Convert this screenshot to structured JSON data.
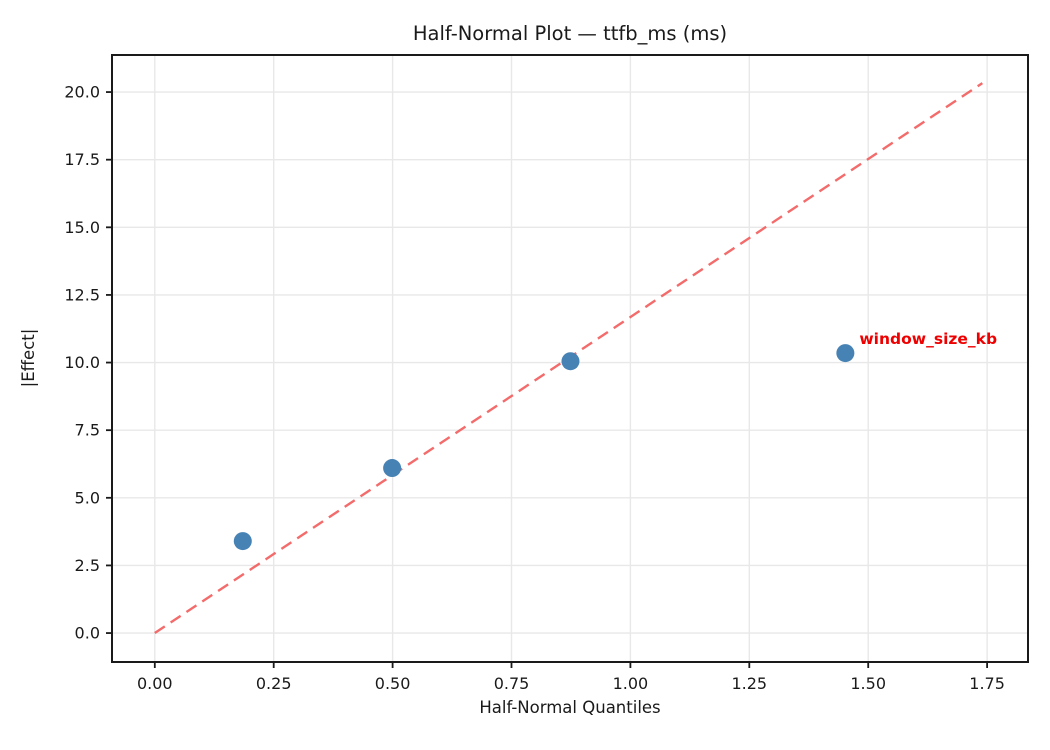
{
  "chart_data": {
    "type": "scatter",
    "title": "Half-Normal Plot — ttfb_ms (ms)",
    "xlabel": "Half-Normal Quantiles",
    "ylabel": "|Effect|",
    "points": [
      {
        "x": 0.185,
        "y": 3.4
      },
      {
        "x": 0.499,
        "y": 6.1
      },
      {
        "x": 0.874,
        "y": 10.05
      },
      {
        "x": 1.452,
        "y": 10.35
      }
    ],
    "annotation": {
      "text": "window_size_kb",
      "x": 1.452,
      "y": 10.35,
      "color": "#ee0000"
    },
    "reference_line": {
      "x": [
        0.0,
        1.74
      ],
      "y": [
        0.0,
        20.33
      ],
      "style": "dashed",
      "color": "#f25c5c"
    },
    "xticks": {
      "values": [
        0.0,
        0.25,
        0.5,
        0.75,
        1.0,
        1.25,
        1.5,
        1.75
      ],
      "labels": [
        "0.00",
        "0.25",
        "0.50",
        "0.75",
        "1.00",
        "1.25",
        "1.50",
        "1.75"
      ]
    },
    "yticks": {
      "values": [
        0.0,
        2.5,
        5.0,
        7.5,
        10.0,
        12.5,
        15.0,
        17.5,
        20.0
      ],
      "labels": [
        "0.0",
        "2.5",
        "5.0",
        "7.5",
        "10.0",
        "12.5",
        "15.0",
        "17.5",
        "20.0"
      ]
    },
    "xlim": [
      -0.09,
      1.836
    ],
    "ylim": [
      -1.07,
      21.37
    ],
    "grid": true,
    "legend": false,
    "colors": {
      "point": "#4682b4",
      "line": "#f25c5c",
      "annotation": "#ee0000",
      "grid": "#e8e8e8",
      "spine": "#1a1a1a",
      "text": "#1a1a1a",
      "background": "#ffffff"
    }
  }
}
